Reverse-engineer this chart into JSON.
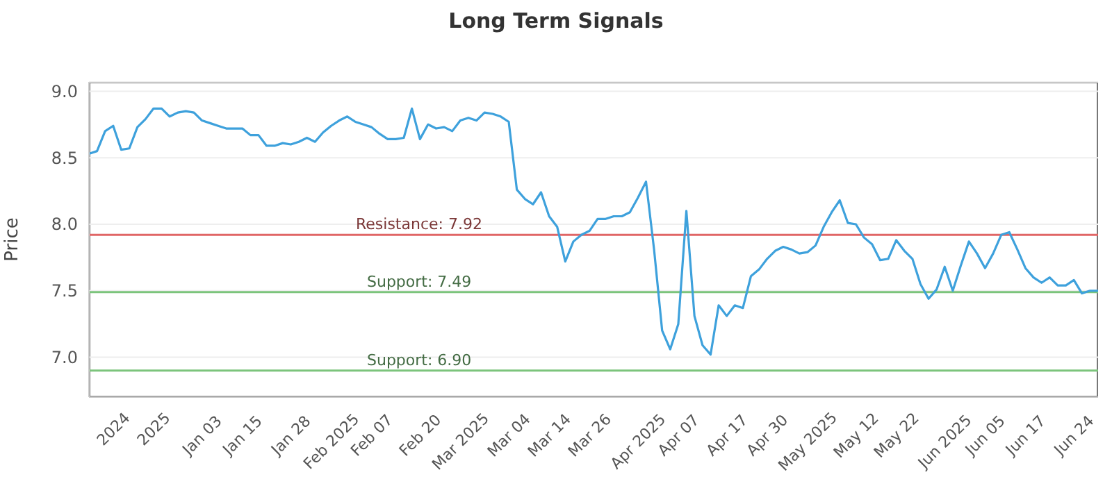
{
  "chart_data": {
    "type": "line",
    "title": "Long Term Signals",
    "ylabel": "Price",
    "categories": [
      null,
      null,
      null,
      "2024",
      null,
      null,
      null,
      null,
      "2025",
      null,
      null,
      null,
      null,
      null,
      "Jan 03",
      null,
      null,
      null,
      null,
      "Jan 15",
      null,
      null,
      null,
      null,
      null,
      "Jan 28",
      null,
      null,
      null,
      null,
      "Feb 2025",
      null,
      null,
      null,
      null,
      "Feb 07",
      null,
      null,
      null,
      null,
      null,
      "Feb 20",
      null,
      null,
      null,
      null,
      "Mar 2025",
      null,
      null,
      null,
      null,
      null,
      "Mar 04",
      null,
      null,
      null,
      null,
      "Mar 14",
      null,
      null,
      null,
      null,
      "Mar 26",
      null,
      null,
      null,
      null,
      null,
      "Apr 2025",
      null,
      null,
      null,
      null,
      "Apr 07",
      null,
      null,
      null,
      null,
      null,
      "Apr 17",
      null,
      null,
      null,
      null,
      "Apr 30",
      null,
      null,
      null,
      null,
      "May 2025",
      null,
      null,
      null,
      null,
      null,
      "May 12",
      null,
      null,
      null,
      null,
      "May 22",
      null,
      null,
      null,
      null,
      null,
      "Jun 2025",
      null,
      null,
      null,
      null,
      "Jun 05",
      null,
      null,
      null,
      null,
      "Jun 17",
      null,
      null,
      null,
      null,
      null,
      "Jun 24",
      null,
      null,
      null
    ],
    "series": [
      {
        "color": "#3ea1dc",
        "values": [
          8.53,
          8.55,
          8.7,
          8.74,
          8.56,
          8.57,
          8.73,
          8.79,
          8.87,
          8.87,
          8.81,
          8.84,
          8.85,
          8.84,
          8.78,
          8.76,
          8.74,
          8.72,
          8.72,
          8.72,
          8.67,
          8.67,
          8.59,
          8.59,
          8.61,
          8.6,
          8.62,
          8.65,
          8.62,
          8.69,
          8.74,
          8.78,
          8.81,
          8.77,
          8.75,
          8.73,
          8.68,
          8.64,
          8.64,
          8.65,
          8.87,
          8.64,
          8.75,
          8.72,
          8.73,
          8.7,
          8.78,
          8.8,
          8.78,
          8.84,
          8.83,
          8.81,
          8.77,
          8.26,
          8.19,
          8.15,
          8.24,
          8.06,
          7.98,
          7.72,
          7.87,
          7.92,
          7.95,
          8.04,
          8.04,
          8.06,
          8.06,
          8.09,
          8.2,
          8.32,
          7.81,
          7.2,
          7.06,
          7.25,
          8.1,
          7.31,
          7.09,
          7.02,
          7.39,
          7.31,
          7.39,
          7.37,
          7.61,
          7.66,
          7.74,
          7.8,
          7.83,
          7.81,
          7.78,
          7.79,
          7.84,
          7.98,
          8.09,
          8.18,
          8.01,
          8.0,
          7.9,
          7.85,
          7.73,
          7.74,
          7.88,
          7.8,
          7.74,
          7.55,
          7.44,
          7.51,
          7.68,
          7.5,
          7.69,
          7.87,
          7.78,
          7.67,
          7.78,
          7.92,
          7.94,
          7.81,
          7.67,
          7.6,
          7.56,
          7.6,
          7.54,
          7.54,
          7.58,
          7.48,
          7.5,
          7.5
        ]
      }
    ],
    "ylim": [
      6.7,
      9.07
    ],
    "yticks": [
      {
        "value": 7,
        "label": "7.0"
      },
      7.5,
      {
        "value": 8,
        "label": "8.0"
      },
      8.5,
      {
        "value": 9,
        "label": "9.0"
      }
    ],
    "ref_lines": [
      {
        "axis": "y",
        "value": 7.92,
        "label": "Resistance: 7.92",
        "color": "#e06666"
      },
      {
        "axis": "y",
        "value": 7.49,
        "label": "Support: 7.49",
        "color": "#7cc47c"
      },
      {
        "axis": "y",
        "value": 6.9,
        "label": "Support: 6.90",
        "color": "#7cc47c"
      }
    ],
    "grid": "y",
    "marker": "none",
    "line_style": "solid"
  }
}
